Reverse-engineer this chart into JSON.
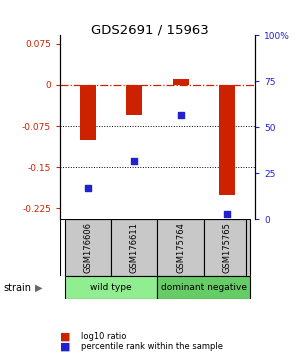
{
  "title": "GDS2691 / 15963",
  "samples": [
    "GSM176606",
    "GSM176611",
    "GSM175764",
    "GSM175765"
  ],
  "log10_ratio": [
    -0.1,
    -0.055,
    0.01,
    -0.2
  ],
  "percentile_rank": [
    17,
    32,
    57,
    3
  ],
  "groups": [
    {
      "label": "wild type",
      "samples": [
        0,
        1
      ],
      "color": "#90EE90"
    },
    {
      "label": "dominant negative",
      "samples": [
        2,
        3
      ],
      "color": "#66CC66"
    }
  ],
  "ylim_left": [
    -0.245,
    0.09
  ],
  "yticks_left": [
    0.075,
    0,
    -0.075,
    -0.15,
    -0.225
  ],
  "yticks_right_vals": [
    100,
    75,
    50,
    25,
    0
  ],
  "bar_color": "#CC2200",
  "dot_color": "#2222CC",
  "bar_width": 0.35,
  "dotted_lines": [
    -0.075,
    -0.15
  ],
  "sample_box_color": "#C8C8C8",
  "strain_label": "strain"
}
